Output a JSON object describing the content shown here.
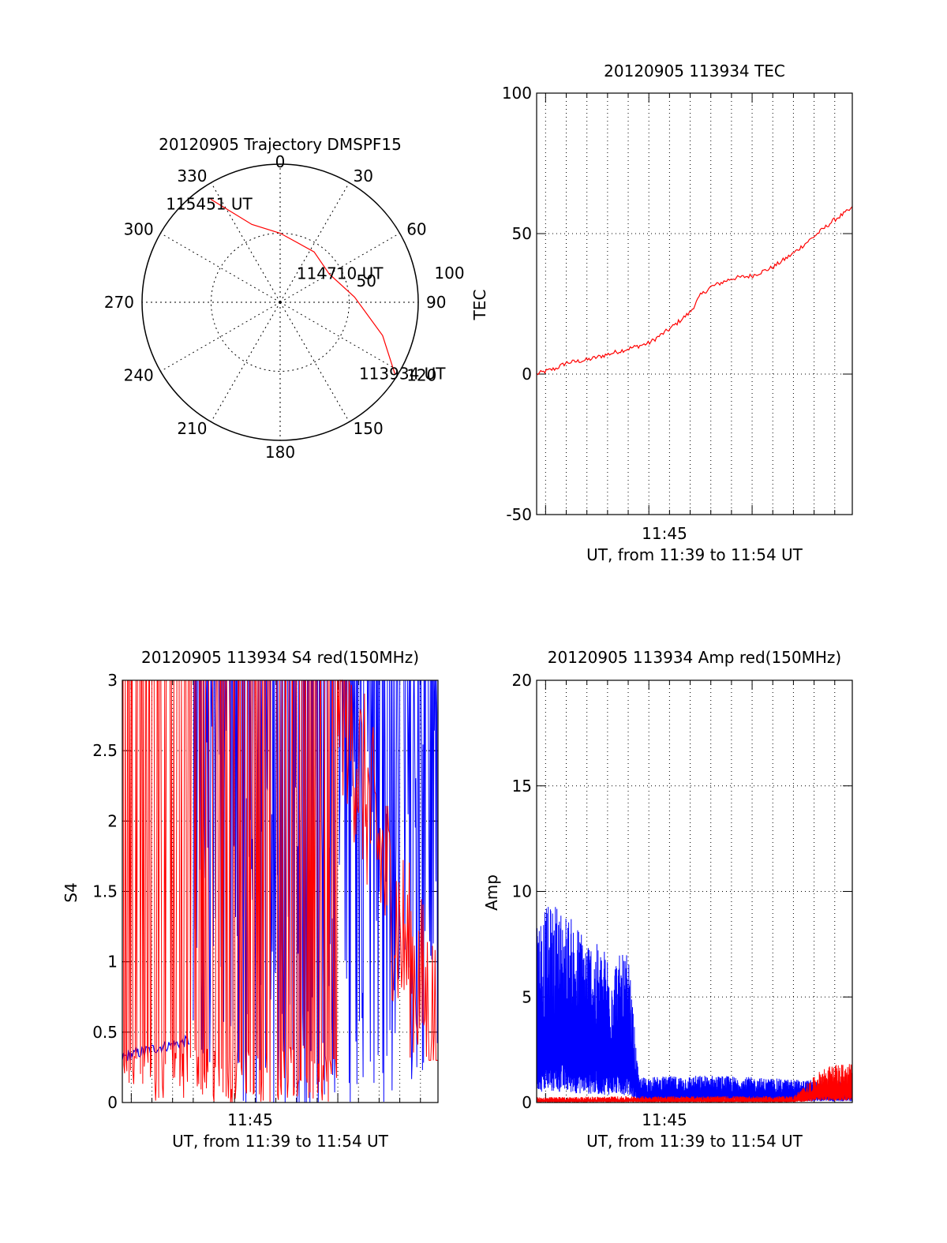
{
  "colors": {
    "red": "#ff0000",
    "blue": "#0000ff",
    "axis": "#000000",
    "grid": "#000000"
  },
  "chart_data": [
    {
      "id": "polar",
      "type": "polar-trajectory",
      "title": "20120905 Trajectory DMSPF15",
      "angle_labels": [
        "0",
        "30",
        "60",
        "90",
        "120",
        "150",
        "180",
        "210",
        "240",
        "270",
        "300",
        "330"
      ],
      "radius_labels": [
        "50",
        "100"
      ],
      "rmax": 100,
      "grid": true,
      "series": [
        {
          "color": "red",
          "points": [
            {
              "az": 326,
              "r": 90
            },
            {
              "az": 340,
              "r": 60
            },
            {
              "az": 0,
              "r": 50
            },
            {
              "az": 34,
              "r": 44
            },
            {
              "az": 60,
              "r": 41
            },
            {
              "az": 86,
              "r": 54
            },
            {
              "az": 108,
              "r": 78
            },
            {
              "az": 122,
              "r": 98
            }
          ]
        }
      ],
      "annotations": [
        {
          "text": "115451 UT",
          "az": 329,
          "r": 83
        },
        {
          "text": "114710 UT",
          "az": 68,
          "r": 56
        },
        {
          "text": "113934 UT",
          "az": 118,
          "r": 110
        }
      ]
    },
    {
      "id": "tec",
      "type": "line",
      "title": "20120905 113934 TEC",
      "xlabel": "UT, from 11:39 to 11:54 UT",
      "ylabel": "TEC",
      "x_tick_labels": [
        "11:45"
      ],
      "xlim": [
        "11:39:34",
        "11:54:51"
      ],
      "ylim": [
        -50,
        100
      ],
      "y_ticks": [
        -50,
        0,
        50,
        100
      ],
      "grid": true,
      "series": [
        {
          "color": "red",
          "x": [
            "11:39:34",
            "11:40:00",
            "11:40:30",
            "11:41:00",
            "11:42:00",
            "11:43:00",
            "11:44:00",
            "11:45:00",
            "11:46:00",
            "11:47:00",
            "11:47:30",
            "11:48:00",
            "11:49:00",
            "11:50:00",
            "11:51:00",
            "11:52:00",
            "11:53:00",
            "11:54:00",
            "11:54:51"
          ],
          "values": [
            0,
            1,
            2,
            4,
            5,
            7,
            9,
            11,
            16,
            22,
            28,
            31,
            34,
            35,
            38,
            43,
            49,
            55,
            59
          ]
        }
      ]
    },
    {
      "id": "s4",
      "type": "line",
      "title": "20120905 113934 S4 red(150MHz)",
      "xlabel": "UT, from 11:39 to 11:54 UT",
      "ylabel": "S4",
      "x_tick_labels": [
        "11:45"
      ],
      "xlim": [
        "11:39:34",
        "11:54:51"
      ],
      "ylim": [
        0,
        3
      ],
      "y_ticks": [
        0,
        0.5,
        1,
        1.5,
        2,
        2.5,
        3
      ],
      "y_tick_labels": [
        "0",
        "0.5",
        "1",
        "1.5",
        "2",
        "2.5",
        "3"
      ],
      "grid": true,
      "series": [
        {
          "color": "blue",
          "description": "low near 0.35-0.45 from 11:39:34 to 11:42:50, then saturated 0-3 oscillation to 11:54:51",
          "x": [
            "11:39:34",
            "11:41:00",
            "11:42:50",
            "11:43:00",
            "11:47:00",
            "11:50:00",
            "11:53:00",
            "11:54:51"
          ],
          "values": [
            0.32,
            0.38,
            0.44,
            3,
            2.2,
            2.4,
            2.6,
            2.8
          ]
        },
        {
          "color": "red",
          "description": "dense oscillation 0-3 from 11:39:34 to 11:53:00, decaying toward 0.5 by 11:54:51",
          "x": [
            "11:39:34",
            "11:45:00",
            "11:50:00",
            "11:53:00",
            "11:54:51"
          ],
          "values": [
            3,
            3,
            3,
            1.2,
            0.5
          ]
        }
      ]
    },
    {
      "id": "amp",
      "type": "line",
      "title": "20120905 113934 Amp red(150MHz)",
      "xlabel": "UT, from 11:39 to 11:54 UT",
      "ylabel": "Amp",
      "x_tick_labels": [
        "11:45"
      ],
      "xlim": [
        "11:39:34",
        "11:54:51"
      ],
      "ylim": [
        0,
        20
      ],
      "y_ticks": [
        0,
        5,
        10,
        15,
        20
      ],
      "grid": true,
      "series": [
        {
          "color": "blue",
          "x": [
            "11:39:34",
            "11:40:30",
            "11:41:30",
            "11:42:30",
            "11:43:30",
            "11:44:00",
            "11:44:30",
            "11:48:00",
            "11:52:00",
            "11:54:51"
          ],
          "values": [
            9,
            9.5,
            8.5,
            7.5,
            7,
            7,
            1.2,
            1.3,
            1.1,
            1.0
          ]
        },
        {
          "color": "red",
          "x": [
            "11:39:34",
            "11:44:00",
            "11:52:00",
            "11:53:30",
            "11:54:51"
          ],
          "values": [
            0.25,
            0.3,
            0.3,
            1.7,
            1.9
          ]
        }
      ]
    }
  ]
}
